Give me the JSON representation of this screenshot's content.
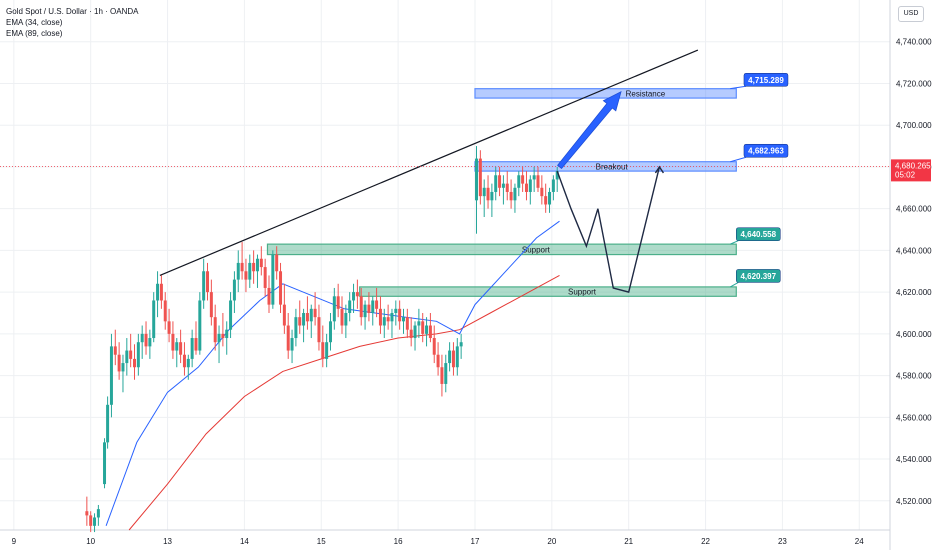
{
  "header": {
    "title": "Gold Spot / U.S. Dollar · 1h · OANDA",
    "indicators": [
      "EMA (34, close)",
      "EMA (89, close)"
    ],
    "currency": "USD"
  },
  "last_price": {
    "value": "4,680.265",
    "countdown": "05:02"
  },
  "colors": {
    "bull": "#26a69a",
    "bear": "#ef5350",
    "ema34": "#2962ff",
    "ema89": "#e53935",
    "zone_blue": "#5b8cff",
    "zone_green": "#4caf8a",
    "callout_blue": "#2962ff",
    "callout_green": "#26a69a",
    "trendline": "#131722",
    "price_line": "#f23645",
    "arrow": "#2962ff"
  },
  "chart_data": {
    "type": "candlestick",
    "y_ticks": [
      "4,740.000",
      "4,720.000",
      "4,700.000",
      "4,680.000",
      "4,660.000",
      "4,640.000",
      "4,620.000",
      "4,600.000",
      "4,580.000",
      "4,560.000",
      "4,540.000",
      "4,520.000"
    ],
    "y_tick_values": [
      4740,
      4720,
      4700,
      4680,
      4660,
      4640,
      4620,
      4600,
      4580,
      4560,
      4540,
      4520
    ],
    "x_ticks": [
      "9",
      "10",
      "13",
      "14",
      "15",
      "16",
      "17",
      "20",
      "21",
      "22",
      "23",
      "24"
    ],
    "x_tick_day": [
      0,
      1,
      2,
      3,
      4,
      5,
      6,
      7,
      8,
      9,
      10,
      11
    ],
    "ylim": [
      4506,
      4760
    ],
    "xlim": [
      -0.18,
      11.4
    ],
    "candles_note": "approximate OHLC path, x in trading-day index",
    "candles": [
      [
        0.95,
        4515,
        4522,
        4508,
        4513
      ],
      [
        1.0,
        4513,
        4515,
        4505,
        4508
      ],
      [
        1.05,
        4508,
        4514,
        4505,
        4512
      ],
      [
        1.1,
        4512,
        4518,
        4508,
        4516
      ],
      [
        1.18,
        4528,
        4550,
        4526,
        4548
      ],
      [
        1.22,
        4548,
        4570,
        4545,
        4566
      ],
      [
        1.27,
        4566,
        4600,
        4560,
        4594
      ],
      [
        1.32,
        4594,
        4602,
        4585,
        4590
      ],
      [
        1.37,
        4590,
        4596,
        4578,
        4582
      ],
      [
        1.42,
        4582,
        4590,
        4572,
        4586
      ],
      [
        1.47,
        4586,
        4598,
        4580,
        4592
      ],
      [
        1.52,
        4592,
        4600,
        4584,
        4588
      ],
      [
        1.57,
        4588,
        4595,
        4578,
        4584
      ],
      [
        1.62,
        4584,
        4600,
        4580,
        4596
      ],
      [
        1.67,
        4596,
        4604,
        4588,
        4600
      ],
      [
        1.72,
        4600,
        4606,
        4590,
        4594
      ],
      [
        1.77,
        4594,
        4602,
        4588,
        4598
      ],
      [
        1.82,
        4598,
        4620,
        4596,
        4616
      ],
      [
        1.87,
        4616,
        4630,
        4608,
        4624
      ],
      [
        1.92,
        4624,
        4628,
        4612,
        4616
      ],
      [
        1.97,
        4616,
        4620,
        4602,
        4606
      ],
      [
        2.02,
        4606,
        4612,
        4596,
        4600
      ],
      [
        2.07,
        4600,
        4606,
        4588,
        4592
      ],
      [
        2.12,
        4592,
        4598,
        4584,
        4596
      ],
      [
        2.17,
        4596,
        4602,
        4586,
        4590
      ],
      [
        2.22,
        4590,
        4596,
        4580,
        4584
      ],
      [
        2.27,
        4584,
        4590,
        4578,
        4588
      ],
      [
        2.32,
        4588,
        4602,
        4584,
        4598
      ],
      [
        2.37,
        4598,
        4606,
        4590,
        4592
      ],
      [
        2.42,
        4592,
        4620,
        4590,
        4616
      ],
      [
        2.47,
        4616,
        4636,
        4612,
        4630
      ],
      [
        2.52,
        4630,
        4634,
        4616,
        4620
      ],
      [
        2.57,
        4620,
        4626,
        4604,
        4608
      ],
      [
        2.62,
        4608,
        4614,
        4592,
        4596
      ],
      [
        2.67,
        4596,
        4604,
        4586,
        4600
      ],
      [
        2.72,
        4600,
        4610,
        4594,
        4598
      ],
      [
        2.77,
        4598,
        4606,
        4590,
        4602
      ],
      [
        2.82,
        4602,
        4620,
        4598,
        4616
      ],
      [
        2.87,
        4616,
        4630,
        4610,
        4626
      ],
      [
        2.92,
        4626,
        4640,
        4620,
        4634
      ],
      [
        2.97,
        4634,
        4644,
        4626,
        4630
      ],
      [
        3.02,
        4630,
        4636,
        4620,
        4626
      ],
      [
        3.07,
        4626,
        4638,
        4622,
        4634
      ],
      [
        3.12,
        4634,
        4640,
        4624,
        4630
      ],
      [
        3.17,
        4630,
        4638,
        4622,
        4636
      ],
      [
        3.22,
        4636,
        4642,
        4628,
        4632
      ],
      [
        3.27,
        4632,
        4636,
        4618,
        4622
      ],
      [
        3.32,
        4622,
        4628,
        4610,
        4614
      ],
      [
        3.37,
        4614,
        4640,
        4612,
        4638
      ],
      [
        3.42,
        4638,
        4642,
        4626,
        4630
      ],
      [
        3.47,
        4630,
        4634,
        4610,
        4614
      ],
      [
        3.52,
        4614,
        4624,
        4600,
        4604
      ],
      [
        3.57,
        4604,
        4610,
        4588,
        4592
      ],
      [
        3.62,
        4592,
        4602,
        4586,
        4598
      ],
      [
        3.67,
        4598,
        4612,
        4594,
        4608
      ],
      [
        3.72,
        4608,
        4616,
        4600,
        4604
      ],
      [
        3.77,
        4604,
        4612,
        4596,
        4610
      ],
      [
        3.82,
        4610,
        4618,
        4602,
        4606
      ],
      [
        3.87,
        4606,
        4614,
        4598,
        4612
      ],
      [
        3.92,
        4612,
        4620,
        4604,
        4608
      ],
      [
        3.97,
        4608,
        4614,
        4592,
        4596
      ],
      [
        4.02,
        4596,
        4604,
        4584,
        4588
      ],
      [
        4.07,
        4588,
        4600,
        4584,
        4596
      ],
      [
        4.12,
        4596,
        4610,
        4592,
        4606
      ],
      [
        4.17,
        4606,
        4622,
        4602,
        4618
      ],
      [
        4.22,
        4618,
        4624,
        4608,
        4612
      ],
      [
        4.27,
        4612,
        4618,
        4600,
        4604
      ],
      [
        4.32,
        4604,
        4614,
        4598,
        4610
      ],
      [
        4.37,
        4610,
        4620,
        4606,
        4616
      ],
      [
        4.42,
        4616,
        4624,
        4610,
        4620
      ],
      [
        4.47,
        4620,
        4626,
        4612,
        4618
      ],
      [
        4.52,
        4618,
        4622,
        4604,
        4608
      ],
      [
        4.57,
        4608,
        4616,
        4602,
        4614
      ],
      [
        4.62,
        4614,
        4620,
        4606,
        4610
      ],
      [
        4.67,
        4610,
        4618,
        4604,
        4616
      ],
      [
        4.72,
        4616,
        4622,
        4608,
        4612
      ],
      [
        4.77,
        4612,
        4618,
        4600,
        4604
      ],
      [
        4.82,
        4604,
        4612,
        4598,
        4608
      ],
      [
        4.87,
        4608,
        4614,
        4602,
        4606
      ],
      [
        4.92,
        4606,
        4612,
        4598,
        4610
      ],
      [
        4.97,
        4610,
        4616,
        4604,
        4612
      ],
      [
        5.02,
        4612,
        4616,
        4602,
        4606
      ],
      [
        5.07,
        4606,
        4612,
        4600,
        4608
      ],
      [
        5.12,
        4608,
        4612,
        4598,
        4602
      ],
      [
        5.17,
        4602,
        4608,
        4594,
        4598
      ],
      [
        5.22,
        4598,
        4606,
        4592,
        4604
      ],
      [
        5.27,
        4604,
        4612,
        4598,
        4606
      ],
      [
        5.32,
        4606,
        4610,
        4596,
        4600
      ],
      [
        5.37,
        4600,
        4608,
        4594,
        4604
      ],
      [
        5.42,
        4604,
        4610,
        4596,
        4598
      ],
      [
        5.47,
        4598,
        4604,
        4586,
        4590
      ],
      [
        5.52,
        4590,
        4596,
        4580,
        4584
      ],
      [
        5.57,
        4584,
        4590,
        4570,
        4576
      ],
      [
        5.62,
        4576,
        4590,
        4572,
        4586
      ],
      [
        5.67,
        4586,
        4596,
        4582,
        4592
      ],
      [
        5.72,
        4592,
        4596,
        4580,
        4584
      ],
      [
        5.77,
        4584,
        4598,
        4580,
        4594
      ],
      [
        5.82,
        4594,
        4600,
        4588,
        4596
      ],
      [
        6.02,
        4664,
        4690,
        4648,
        4684
      ],
      [
        6.07,
        4684,
        4688,
        4662,
        4666
      ],
      [
        6.12,
        4666,
        4674,
        4656,
        4670
      ],
      [
        6.17,
        4670,
        4676,
        4660,
        4664
      ],
      [
        6.22,
        4664,
        4672,
        4656,
        4668
      ],
      [
        6.27,
        4668,
        4680,
        4664,
        4676
      ],
      [
        6.32,
        4676,
        4680,
        4666,
        4670
      ],
      [
        6.37,
        4670,
        4676,
        4662,
        4672
      ],
      [
        6.42,
        4672,
        4678,
        4664,
        4668
      ],
      [
        6.47,
        4668,
        4674,
        4660,
        4664
      ],
      [
        6.52,
        4664,
        4672,
        4658,
        4670
      ],
      [
        6.57,
        4670,
        4678,
        4666,
        4676
      ],
      [
        6.62,
        4676,
        4680,
        4668,
        4672
      ],
      [
        6.67,
        4672,
        4678,
        4664,
        4668
      ],
      [
        6.72,
        4668,
        4676,
        4662,
        4674
      ],
      [
        6.77,
        4674,
        4680,
        4668,
        4676
      ],
      [
        6.82,
        4676,
        4680,
        4668,
        4670
      ],
      [
        6.87,
        4670,
        4676,
        4662,
        4666
      ],
      [
        6.92,
        4666,
        4672,
        4658,
        4662
      ],
      [
        6.97,
        4662,
        4670,
        4658,
        4668
      ],
      [
        7.02,
        4668,
        4676,
        4664,
        4674
      ],
      [
        7.07,
        4674,
        4680,
        4668,
        4678
      ]
    ],
    "ema34": [
      [
        1.2,
        4508
      ],
      [
        1.6,
        4548
      ],
      [
        2.0,
        4572
      ],
      [
        2.4,
        4584
      ],
      [
        2.8,
        4602
      ],
      [
        3.2,
        4616
      ],
      [
        3.5,
        4624
      ],
      [
        3.9,
        4618
      ],
      [
        4.3,
        4612
      ],
      [
        4.7,
        4610
      ],
      [
        5.1,
        4608
      ],
      [
        5.5,
        4606
      ],
      [
        5.8,
        4600
      ],
      [
        6.0,
        4614
      ],
      [
        6.4,
        4630
      ],
      [
        6.8,
        4646
      ],
      [
        7.1,
        4654
      ]
    ],
    "ema89": [
      [
        1.5,
        4506
      ],
      [
        2.0,
        4528
      ],
      [
        2.5,
        4552
      ],
      [
        3.0,
        4570
      ],
      [
        3.5,
        4582
      ],
      [
        4.0,
        4588
      ],
      [
        4.5,
        4594
      ],
      [
        5.0,
        4598
      ],
      [
        5.5,
        4600
      ],
      [
        5.8,
        4602
      ],
      [
        6.2,
        4610
      ],
      [
        6.6,
        4618
      ],
      [
        7.1,
        4628
      ]
    ],
    "trendline": [
      [
        1.9,
        4628
      ],
      [
        8.9,
        4736
      ]
    ],
    "zones": [
      {
        "name": "Resistance",
        "label": "Resistance",
        "color": "blue",
        "x0": 6.0,
        "x1": 9.4,
        "y0": 4713,
        "y1": 4717.5
      },
      {
        "name": "Breakout",
        "label": "Breakout",
        "color": "blue",
        "x0": 6.0,
        "x1": 9.4,
        "y0": 4678,
        "y1": 4682.5
      },
      {
        "name": "Support-upper",
        "label": "Support",
        "color": "green",
        "x0": 3.3,
        "x1": 9.4,
        "y0": 4638,
        "y1": 4643
      },
      {
        "name": "Support-lower",
        "label": "Support",
        "color": "green",
        "x0": 4.5,
        "x1": 9.4,
        "y0": 4618,
        "y1": 4622.5
      }
    ],
    "callouts": [
      {
        "label": "4,715.289",
        "color": "blue",
        "x": 9.5,
        "y": 4722
      },
      {
        "label": "4,682.963",
        "color": "blue",
        "x": 9.5,
        "y": 4688
      },
      {
        "label": "4,640.558",
        "color": "green",
        "x": 9.4,
        "y": 4648
      },
      {
        "label": "4,620.397",
        "color": "green",
        "x": 9.4,
        "y": 4628
      }
    ],
    "projection_path": [
      [
        7.07,
        4678
      ],
      [
        7.25,
        4660
      ],
      [
        7.45,
        4642
      ],
      [
        7.6,
        4660
      ],
      [
        7.8,
        4622
      ],
      [
        8.0,
        4620
      ],
      [
        8.4,
        4680
      ]
    ],
    "bull_arrow": [
      [
        7.1,
        4680
      ],
      [
        7.9,
        4716
      ]
    ],
    "current_price": 4680.265
  }
}
